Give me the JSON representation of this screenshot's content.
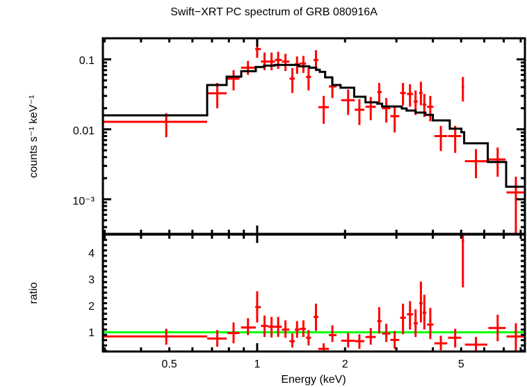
{
  "chart_data": [
    {
      "type": "line",
      "panel": "spectrum",
      "title": "Swift−XRT PC spectrum of GRB 080916A",
      "xlabel": "Energy (keV)",
      "ylabel": "counts s⁻¹ keV⁻¹",
      "xscale": "log",
      "yscale": "log",
      "xlim": [
        0.296,
        8.27
      ],
      "ylim": [
        0.00032,
        0.2
      ],
      "grid": false,
      "y_ticks": [
        {
          "value": 0.1,
          "label": "0.1"
        },
        {
          "value": 0.01,
          "label": "0.01"
        },
        {
          "value": 0.001,
          "label": "10⁻³"
        }
      ],
      "data_color": "#ff0000",
      "model_color": "#000000",
      "series": [
        {
          "name": "data",
          "points": [
            {
              "x": 0.488,
              "xlo": 0.296,
              "xhi": 0.674,
              "y": 0.0128,
              "ylo": 0.0077,
              "yhi": 0.017
            },
            {
              "x": 0.73,
              "xlo": 0.674,
              "xhi": 0.786,
              "y": 0.0327,
              "ylo": 0.02,
              "yhi": 0.046
            },
            {
              "x": 0.83,
              "xlo": 0.79,
              "xhi": 0.87,
              "y": 0.053,
              "ylo": 0.036,
              "yhi": 0.07
            },
            {
              "x": 0.93,
              "xlo": 0.88,
              "xhi": 0.99,
              "y": 0.076,
              "ylo": 0.06,
              "yhi": 0.095
            },
            {
              "x": 1.0,
              "xlo": 0.985,
              "xhi": 1.03,
              "y": 0.14,
              "ylo": 0.105,
              "yhi": 0.2
            },
            {
              "x": 1.06,
              "xlo": 1.03,
              "xhi": 1.09,
              "y": 0.093,
              "ylo": 0.07,
              "yhi": 0.125
            },
            {
              "x": 1.12,
              "xlo": 1.09,
              "xhi": 1.15,
              "y": 0.093,
              "ylo": 0.07,
              "yhi": 0.125
            },
            {
              "x": 1.18,
              "xlo": 1.15,
              "xhi": 1.215,
              "y": 0.098,
              "ylo": 0.073,
              "yhi": 0.128
            },
            {
              "x": 1.25,
              "xlo": 1.215,
              "xhi": 1.29,
              "y": 0.093,
              "ylo": 0.068,
              "yhi": 0.12
            },
            {
              "x": 1.32,
              "xlo": 1.29,
              "xhi": 1.345,
              "y": 0.053,
              "ylo": 0.033,
              "yhi": 0.075
            },
            {
              "x": 1.37,
              "xlo": 1.345,
              "xhi": 1.4,
              "y": 0.085,
              "ylo": 0.062,
              "yhi": 0.11
            },
            {
              "x": 1.44,
              "xlo": 1.4,
              "xhi": 1.47,
              "y": 0.087,
              "ylo": 0.064,
              "yhi": 0.112
            },
            {
              "x": 1.5,
              "xlo": 1.47,
              "xhi": 1.53,
              "y": 0.056,
              "ylo": 0.036,
              "yhi": 0.075
            },
            {
              "x": 1.59,
              "xlo": 1.56,
              "xhi": 1.62,
              "y": 0.098,
              "ylo": 0.068,
              "yhi": 0.135
            },
            {
              "x": 1.69,
              "xlo": 1.62,
              "xhi": 1.76,
              "y": 0.0207,
              "ylo": 0.012,
              "yhi": 0.03
            },
            {
              "x": 1.81,
              "xlo": 1.76,
              "xhi": 1.87,
              "y": 0.041,
              "ylo": 0.028,
              "yhi": 0.055
            },
            {
              "x": 2.05,
              "xlo": 1.94,
              "xhi": 2.16,
              "y": 0.026,
              "ylo": 0.016,
              "yhi": 0.037
            },
            {
              "x": 2.24,
              "xlo": 2.16,
              "xhi": 2.33,
              "y": 0.019,
              "ylo": 0.0115,
              "yhi": 0.027
            },
            {
              "x": 2.45,
              "xlo": 2.35,
              "xhi": 2.55,
              "y": 0.021,
              "ylo": 0.0135,
              "yhi": 0.029
            },
            {
              "x": 2.62,
              "xlo": 2.58,
              "xhi": 2.67,
              "y": 0.034,
              "ylo": 0.023,
              "yhi": 0.046
            },
            {
              "x": 2.77,
              "xlo": 2.68,
              "xhi": 2.86,
              "y": 0.02,
              "ylo": 0.0125,
              "yhi": 0.028
            },
            {
              "x": 2.96,
              "xlo": 2.86,
              "xhi": 3.07,
              "y": 0.0154,
              "ylo": 0.009,
              "yhi": 0.022
            },
            {
              "x": 3.16,
              "xlo": 3.09,
              "xhi": 3.23,
              "y": 0.033,
              "ylo": 0.022,
              "yhi": 0.046
            },
            {
              "x": 3.34,
              "xlo": 3.26,
              "xhi": 3.42,
              "y": 0.032,
              "ylo": 0.021,
              "yhi": 0.044
            },
            {
              "x": 3.49,
              "xlo": 3.44,
              "xhi": 3.55,
              "y": 0.025,
              "ylo": 0.016,
              "yhi": 0.036
            },
            {
              "x": 3.64,
              "xlo": 3.59,
              "xhi": 3.69,
              "y": 0.033,
              "ylo": 0.022,
              "yhi": 0.048
            },
            {
              "x": 3.74,
              "xlo": 3.69,
              "xhi": 3.8,
              "y": 0.0225,
              "ylo": 0.015,
              "yhi": 0.032
            },
            {
              "x": 3.92,
              "xlo": 3.82,
              "xhi": 4.02,
              "y": 0.021,
              "ylo": 0.013,
              "yhi": 0.03
            },
            {
              "x": 4.26,
              "xlo": 4.05,
              "xhi": 4.48,
              "y": 0.008,
              "ylo": 0.0049,
              "yhi": 0.0112
            },
            {
              "x": 4.77,
              "xlo": 4.51,
              "xhi": 5.0,
              "y": 0.008,
              "ylo": 0.0046,
              "yhi": 0.0112
            },
            {
              "x": 5.07,
              "xlo": 5.02,
              "xhi": 5.12,
              "y": 0.04,
              "ylo": 0.025,
              "yhi": 0.056
            },
            {
              "x": 5.62,
              "xlo": 5.15,
              "xhi": 6.15,
              "y": 0.0035,
              "ylo": 0.002,
              "yhi": 0.0052
            },
            {
              "x": 6.67,
              "xlo": 6.2,
              "xhi": 7.1,
              "y": 0.0037,
              "ylo": 0.0021,
              "yhi": 0.0055
            },
            {
              "x": 7.7,
              "xlo": 7.15,
              "xhi": 8.27,
              "y": 0.00125,
              "ylo": 0.00032,
              "yhi": 0.0021
            }
          ]
        },
        {
          "name": "model",
          "steps": [
            {
              "xlo": 0.296,
              "xhi": 0.674,
              "y": 0.0158
            },
            {
              "xlo": 0.674,
              "xhi": 0.786,
              "y": 0.043
            },
            {
              "xlo": 0.786,
              "xhi": 0.882,
              "y": 0.0566
            },
            {
              "xlo": 0.882,
              "xhi": 0.989,
              "y": 0.0679
            },
            {
              "xlo": 0.989,
              "xhi": 1.056,
              "y": 0.0778
            },
            {
              "xlo": 1.056,
              "xhi": 1.147,
              "y": 0.0815
            },
            {
              "xlo": 1.147,
              "xhi": 1.245,
              "y": 0.0834
            },
            {
              "xlo": 1.245,
              "xhi": 1.39,
              "y": 0.0834
            },
            {
              "xlo": 1.39,
              "xhi": 1.509,
              "y": 0.0796
            },
            {
              "xlo": 1.509,
              "xhi": 1.594,
              "y": 0.076
            },
            {
              "xlo": 1.594,
              "xhi": 1.638,
              "y": 0.071
            },
            {
              "xlo": 1.638,
              "xhi": 1.71,
              "y": 0.0663
            },
            {
              "xlo": 1.71,
              "xhi": 1.808,
              "y": 0.0553
            },
            {
              "xlo": 1.808,
              "xhi": 1.93,
              "y": 0.043
            },
            {
              "xlo": 1.93,
              "xhi": 2.15,
              "y": 0.0393
            },
            {
              "xlo": 2.15,
              "xhi": 2.35,
              "y": 0.0292
            },
            {
              "xlo": 2.35,
              "xhi": 2.58,
              "y": 0.0243
            },
            {
              "xlo": 2.58,
              "xhi": 2.68,
              "y": 0.0232
            },
            {
              "xlo": 2.68,
              "xhi": 3.13,
              "y": 0.0212
            },
            {
              "xlo": 3.13,
              "xhi": 3.25,
              "y": 0.0198
            },
            {
              "xlo": 3.25,
              "xhi": 3.49,
              "y": 0.0185
            },
            {
              "xlo": 3.49,
              "xhi": 3.77,
              "y": 0.0173
            },
            {
              "xlo": 3.77,
              "xhi": 4.0,
              "y": 0.0161
            },
            {
              "xlo": 4.0,
              "xhi": 4.57,
              "y": 0.0134
            },
            {
              "xlo": 4.57,
              "xhi": 5.01,
              "y": 0.0102
            },
            {
              "xlo": 5.01,
              "xhi": 5.12,
              "y": 0.0091
            },
            {
              "xlo": 5.12,
              "xhi": 6.17,
              "y": 0.0063
            },
            {
              "xlo": 6.17,
              "xhi": 7.13,
              "y": 0.0034
            },
            {
              "xlo": 7.13,
              "xhi": 8.27,
              "y": 0.00151
            }
          ]
        }
      ]
    },
    {
      "type": "scatter",
      "panel": "ratio",
      "xlabel": "Energy (keV)",
      "ylabel": "ratio",
      "xscale": "log",
      "yscale": "linear",
      "xlim": [
        0.296,
        8.27
      ],
      "ylim": [
        0.27,
        4.7
      ],
      "grid": false,
      "x_ticks": [
        {
          "value": 0.5,
          "label": "0.5"
        },
        {
          "value": 1,
          "label": "1"
        },
        {
          "value": 2,
          "label": "2"
        },
        {
          "value": 5,
          "label": "5"
        }
      ],
      "y_ticks": [
        {
          "value": 1,
          "label": "1"
        },
        {
          "value": 2,
          "label": "2"
        },
        {
          "value": 3,
          "label": "3"
        },
        {
          "value": 4,
          "label": "4"
        }
      ],
      "reference_line": {
        "y": 1,
        "color": "#00ff00"
      },
      "data_color": "#ff0000",
      "series": [
        {
          "name": "ratio",
          "points": [
            {
              "x": 0.488,
              "xlo": 0.296,
              "xhi": 0.674,
              "y": 0.84,
              "ylo": 0.53,
              "yhi": 1.13
            },
            {
              "x": 0.73,
              "xlo": 0.674,
              "xhi": 0.786,
              "y": 0.76,
              "ylo": 0.45,
              "yhi": 1.08
            },
            {
              "x": 0.83,
              "xlo": 0.79,
              "xhi": 0.87,
              "y": 0.97,
              "ylo": 0.58,
              "yhi": 1.37
            },
            {
              "x": 0.93,
              "xlo": 0.88,
              "xhi": 0.99,
              "y": 1.18,
              "ylo": 0.89,
              "yhi": 1.53
            },
            {
              "x": 1.0,
              "xlo": 0.985,
              "xhi": 1.03,
              "y": 1.95,
              "ylo": 1.37,
              "yhi": 2.55
            },
            {
              "x": 1.06,
              "xlo": 1.03,
              "xhi": 1.09,
              "y": 1.24,
              "ylo": 0.82,
              "yhi": 1.63
            },
            {
              "x": 1.12,
              "xlo": 1.09,
              "xhi": 1.15,
              "y": 1.21,
              "ylo": 0.8,
              "yhi": 1.58
            },
            {
              "x": 1.18,
              "xlo": 1.15,
              "xhi": 1.215,
              "y": 1.21,
              "ylo": 0.82,
              "yhi": 1.58
            },
            {
              "x": 1.25,
              "xlo": 1.215,
              "xhi": 1.29,
              "y": 1.1,
              "ylo": 0.79,
              "yhi": 1.45
            },
            {
              "x": 1.32,
              "xlo": 1.29,
              "xhi": 1.345,
              "y": 0.66,
              "ylo": 0.42,
              "yhi": 0.95
            },
            {
              "x": 1.37,
              "xlo": 1.345,
              "xhi": 1.4,
              "y": 1.1,
              "ylo": 0.79,
              "yhi": 1.42
            },
            {
              "x": 1.44,
              "xlo": 1.4,
              "xhi": 1.47,
              "y": 1.13,
              "ylo": 0.82,
              "yhi": 1.45
            },
            {
              "x": 1.5,
              "xlo": 1.47,
              "xhi": 1.53,
              "y": 0.79,
              "ylo": 0.5,
              "yhi": 1.08
            },
            {
              "x": 1.59,
              "xlo": 1.56,
              "xhi": 1.62,
              "y": 1.58,
              "ylo": 1.05,
              "yhi": 2.08
            },
            {
              "x": 1.69,
              "xlo": 1.62,
              "xhi": 1.76,
              "y": 0.37,
              "ylo": 0.27,
              "yhi": 0.58
            },
            {
              "x": 1.81,
              "xlo": 1.76,
              "xhi": 1.87,
              "y": 0.89,
              "ylo": 0.63,
              "yhi": 1.26
            },
            {
              "x": 2.05,
              "xlo": 1.94,
              "xhi": 2.16,
              "y": 0.68,
              "ylo": 0.42,
              "yhi": 0.97
            },
            {
              "x": 2.24,
              "xlo": 2.16,
              "xhi": 2.33,
              "y": 0.66,
              "ylo": 0.37,
              "yhi": 0.92
            },
            {
              "x": 2.45,
              "xlo": 2.35,
              "xhi": 2.55,
              "y": 0.82,
              "ylo": 0.53,
              "yhi": 1.16
            },
            {
              "x": 2.62,
              "xlo": 2.58,
              "xhi": 2.67,
              "y": 1.42,
              "ylo": 0.95,
              "yhi": 1.95
            },
            {
              "x": 2.77,
              "xlo": 2.68,
              "xhi": 2.86,
              "y": 0.95,
              "ylo": 0.63,
              "yhi": 1.32
            },
            {
              "x": 2.96,
              "xlo": 2.86,
              "xhi": 3.07,
              "y": 0.71,
              "ylo": 0.37,
              "yhi": 1.05
            },
            {
              "x": 3.16,
              "xlo": 3.09,
              "xhi": 3.23,
              "y": 1.55,
              "ylo": 0.92,
              "yhi": 2.08
            },
            {
              "x": 3.34,
              "xlo": 3.26,
              "xhi": 3.42,
              "y": 1.68,
              "ylo": 1.1,
              "yhi": 2.18
            },
            {
              "x": 3.49,
              "xlo": 3.44,
              "xhi": 3.55,
              "y": 1.34,
              "ylo": 0.82,
              "yhi": 1.87
            },
            {
              "x": 3.64,
              "xlo": 3.59,
              "xhi": 3.69,
              "y": 2.1,
              "ylo": 1.37,
              "yhi": 2.92
            },
            {
              "x": 3.74,
              "xlo": 3.69,
              "xhi": 3.8,
              "y": 1.74,
              "ylo": 1.1,
              "yhi": 2.42
            },
            {
              "x": 3.92,
              "xlo": 3.82,
              "xhi": 4.02,
              "y": 1.29,
              "ylo": 0.74,
              "yhi": 1.92
            },
            {
              "x": 4.26,
              "xlo": 4.05,
              "xhi": 4.48,
              "y": 0.58,
              "ylo": 0.32,
              "yhi": 0.87
            },
            {
              "x": 4.77,
              "xlo": 4.51,
              "xhi": 5.0,
              "y": 0.79,
              "ylo": 0.42,
              "yhi": 1.13
            },
            {
              "x": 5.07,
              "xlo": 5.02,
              "xhi": 5.12,
              "y": 4.45,
              "ylo": 2.7,
              "yhi": 4.7
            },
            {
              "x": 5.62,
              "xlo": 5.15,
              "xhi": 6.15,
              "y": 0.53,
              "ylo": 0.27,
              "yhi": 0.82
            },
            {
              "x": 6.67,
              "xlo": 6.2,
              "xhi": 7.1,
              "y": 1.16,
              "ylo": 0.66,
              "yhi": 1.66
            },
            {
              "x": 7.7,
              "xlo": 7.15,
              "xhi": 8.27,
              "y": 0.84,
              "ylo": 0.27,
              "yhi": 1.34
            }
          ]
        }
      ]
    }
  ]
}
